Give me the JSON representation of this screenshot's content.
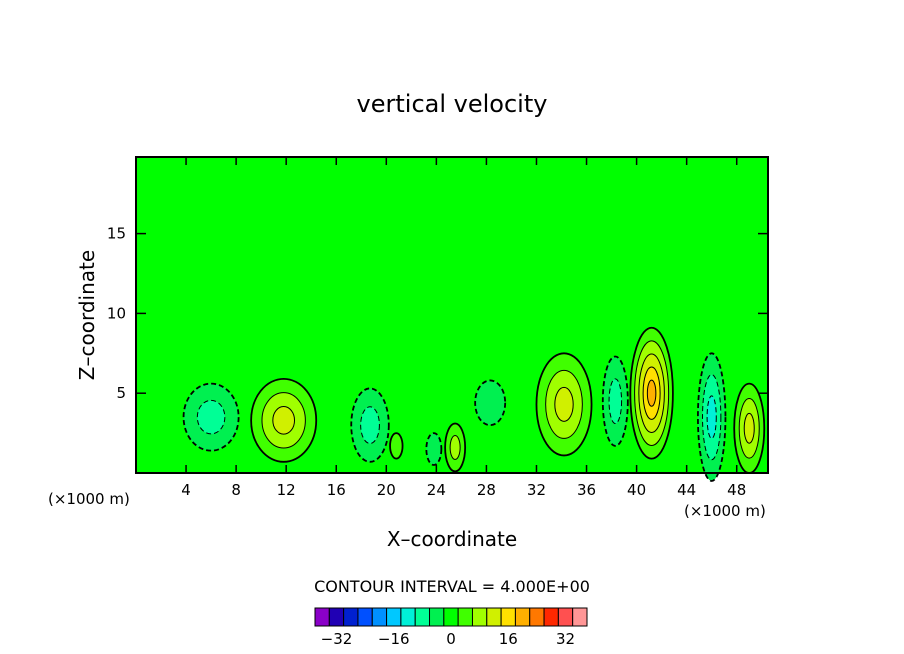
{
  "chart_data": {
    "type": "heatmap",
    "title": "vertical velocity",
    "xlabel": "X–coordinate",
    "ylabel": "Z–coordinate",
    "x_unit_left": "(×1000 m)",
    "x_unit_right": "(×1000 m)",
    "xlim": [
      0,
      50.5
    ],
    "ylim": [
      0,
      19.8
    ],
    "x_ticks": [
      4,
      8,
      12,
      16,
      20,
      24,
      28,
      32,
      36,
      40,
      44,
      48
    ],
    "y_ticks": [
      5,
      10,
      15
    ],
    "contour_interval_text": "CONTOUR INTERVAL = 4.000E+00",
    "colorbar": {
      "levels": [
        -36,
        -32,
        -28,
        -24,
        -20,
        -16,
        -12,
        -8,
        -4,
        0,
        4,
        8,
        12,
        16,
        20,
        24,
        28,
        32,
        36
      ],
      "tick_labels": [
        "−32",
        "−16",
        "0",
        "16",
        "32"
      ],
      "tick_values": [
        -32,
        -16,
        0,
        16,
        32
      ],
      "colors": [
        "#8a00c8",
        "#2000b4",
        "#0020d0",
        "#0050ff",
        "#0090ff",
        "#00c8ff",
        "#00f0d8",
        "#00ff96",
        "#00f050",
        "#00ff00",
        "#40ff00",
        "#a0ff00",
        "#d0f000",
        "#ffe000",
        "#ffb000",
        "#ff7800",
        "#ff2800",
        "#ff5050",
        "#ff9696"
      ]
    },
    "background_value": 0,
    "features": [
      {
        "x": 6,
        "z": 3.5,
        "rx": 2.2,
        "rz": 2.1,
        "value": -8
      },
      {
        "x": 11.8,
        "z": 3.3,
        "rx": 2.6,
        "rz": 2.6,
        "value": 12
      },
      {
        "x": 18.7,
        "z": 3.0,
        "rx": 1.5,
        "rz": 2.3,
        "value": -8
      },
      {
        "x": 20.8,
        "z": 1.7,
        "rx": 0.5,
        "rz": 0.8,
        "value": 4
      },
      {
        "x": 23.8,
        "z": 1.5,
        "rx": 0.6,
        "rz": 1.0,
        "value": -4
      },
      {
        "x": 25.5,
        "z": 1.6,
        "rx": 0.8,
        "rz": 1.5,
        "value": 8
      },
      {
        "x": 28.3,
        "z": 4.4,
        "rx": 1.2,
        "rz": 1.4,
        "value": -4
      },
      {
        "x": 34.2,
        "z": 4.3,
        "rx": 2.2,
        "rz": 3.2,
        "value": 12
      },
      {
        "x": 38.3,
        "z": 4.5,
        "rx": 1.0,
        "rz": 2.8,
        "value": -8
      },
      {
        "x": 41.2,
        "z": 5.0,
        "rx": 1.7,
        "rz": 4.1,
        "value": 20
      },
      {
        "x": 46.0,
        "z": 3.5,
        "rx": 1.1,
        "rz": 4.0,
        "value": -12
      },
      {
        "x": 49.0,
        "z": 2.8,
        "rx": 1.2,
        "rz": 2.8,
        "value": 12
      }
    ]
  }
}
